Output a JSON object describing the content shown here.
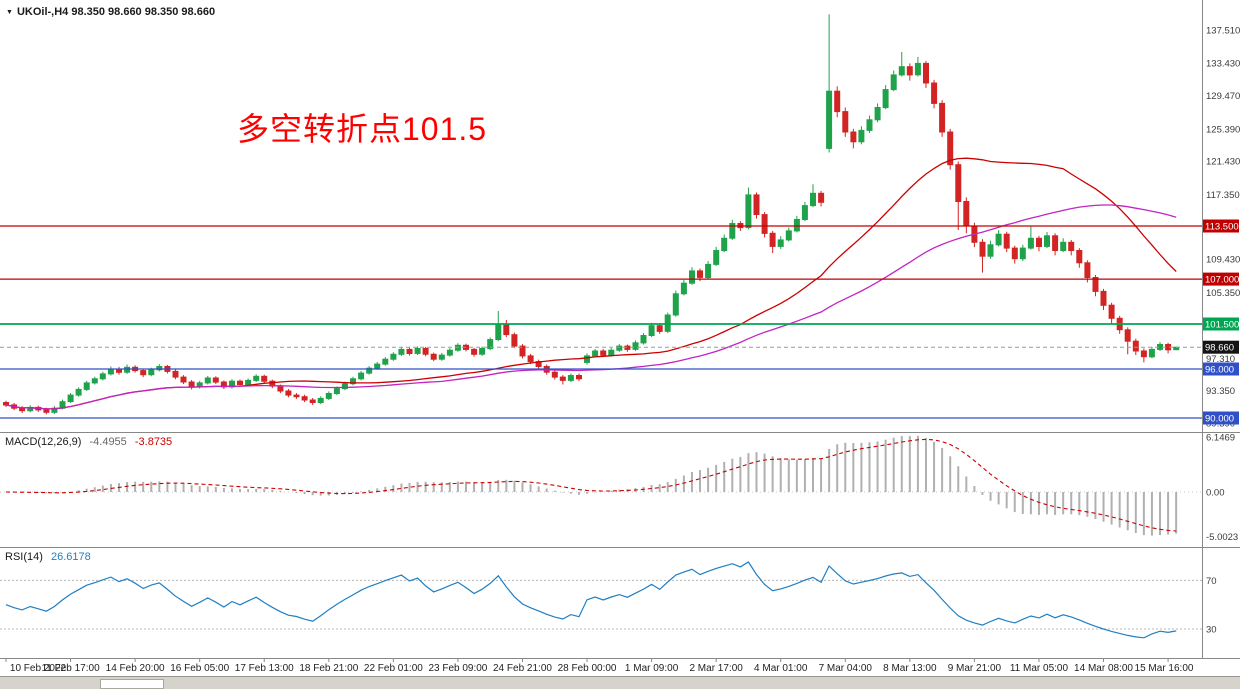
{
  "window": {
    "symbol_info": "UKOil-,H4  98.350 98.660 98.350 98.660",
    "dropdown_icon": "▼"
  },
  "annotation": {
    "text": "多空转折点101.5",
    "color": "#ff0000"
  },
  "price_axis": {
    "labels": [
      "137.510",
      "133.430",
      "129.470",
      "125.390",
      "121.430",
      "117.350",
      "109.430",
      "105.350",
      "97.310",
      "93.350",
      "89.390"
    ],
    "level_badges": [
      {
        "label": "113.500",
        "price": 113.5,
        "bg": "#c00000",
        "line": "solid"
      },
      {
        "label": "107.000",
        "price": 107.0,
        "bg": "#c00000",
        "line": "solid"
      },
      {
        "label": "101.500",
        "price": 101.5,
        "bg": "#00a651",
        "line": "solid",
        "thick": true
      },
      {
        "label": "98.660",
        "price": 98.66,
        "bg": "#141414",
        "line": "dashed"
      },
      {
        "label": "96.000",
        "price": 96.0,
        "bg": "#3050c8",
        "line": "solid"
      },
      {
        "label": "90.000",
        "price": 90.0,
        "bg": "#3050c8",
        "line": "solid"
      }
    ]
  },
  "macd": {
    "label": "MACD(12,26,9)",
    "value_main": "-4.4955",
    "value_signal": "-3.8735",
    "axis_labels": [
      "6.1469",
      "0.00",
      "-5.0023"
    ]
  },
  "rsi": {
    "label": "RSI(14)",
    "value": "26.6178",
    "levels": [
      "70",
      "30"
    ]
  },
  "time_axis": {
    "labels": [
      "10 Feb 2022",
      "11 Feb 17:00",
      "14 Feb 20:00",
      "16 Feb 05:00",
      "17 Feb 13:00",
      "18 Feb 21:00",
      "22 Feb 01:00",
      "23 Feb 09:00",
      "24 Feb 21:00",
      "28 Feb 00:00",
      "1 Mar 09:00",
      "2 Mar 17:00",
      "4 Mar 01:00",
      "7 Mar 04:00",
      "8 Mar 13:00",
      "9 Mar 21:00",
      "11 Mar 05:00",
      "14 Mar 08:00",
      "15 Mar 16:00"
    ]
  },
  "chart_data": {
    "type": "candlestick",
    "symbol": "UKOil-",
    "timeframe": "H4",
    "title": "多空转折点101.5",
    "current_bar": {
      "open": 98.35,
      "high": 98.66,
      "low": 98.35,
      "close": 98.66
    },
    "price_axis_range": [
      88.53,
      140.06
    ],
    "horizontal_levels": [
      113.5,
      107.0,
      101.5,
      96.0,
      90.0
    ],
    "current_price": 98.66,
    "ma_fast": {
      "period": 30,
      "color": "#cc0000"
    },
    "ma_slow": {
      "period": 55,
      "color": "#c224c2"
    },
    "macd": {
      "fast": 12,
      "slow": 26,
      "signal": 9,
      "range": [
        -5.94,
        6.5
      ],
      "last_main": -4.4955,
      "last_signal": -3.8735
    },
    "rsi": {
      "period": 14,
      "range": [
        7,
        95
      ],
      "levels": [
        70,
        30
      ],
      "last_value": 26.6178
    },
    "colors": {
      "up": "#1fa24a",
      "down": "#d32424",
      "hist": "#b0b0b0",
      "signal": "#cc0000",
      "rsi_line": "#1e7fc2",
      "axis_text": "#3a3a3a",
      "time_text": "#1f1f1f",
      "current_line": "#9a9a9a"
    },
    "ohlc": [
      [
        91.9,
        92.1,
        91.35,
        91.6
      ],
      [
        91.6,
        91.85,
        90.95,
        91.2
      ],
      [
        91.2,
        91.45,
        90.6,
        90.9
      ],
      [
        90.9,
        91.55,
        90.7,
        91.3
      ],
      [
        91.3,
        91.5,
        90.75,
        91.0
      ],
      [
        91.0,
        91.25,
        90.45,
        90.7
      ],
      [
        90.7,
        91.45,
        90.5,
        91.2
      ],
      [
        91.2,
        92.25,
        91.05,
        92.0
      ],
      [
        92.0,
        93.05,
        91.85,
        92.8
      ],
      [
        92.8,
        93.75,
        92.6,
        93.5
      ],
      [
        93.5,
        94.55,
        93.3,
        94.3
      ],
      [
        94.3,
        95.05,
        94.1,
        94.8
      ],
      [
        94.8,
        95.65,
        94.6,
        95.4
      ],
      [
        95.4,
        96.3,
        95.2,
        96.0
      ],
      [
        96.0,
        96.25,
        95.3,
        95.6
      ],
      [
        95.6,
        96.55,
        95.4,
        96.2
      ],
      [
        96.2,
        96.45,
        95.55,
        95.8
      ],
      [
        95.8,
        96.05,
        95.0,
        95.3
      ],
      [
        95.3,
        96.15,
        95.1,
        95.9
      ],
      [
        95.9,
        96.6,
        95.7,
        96.3
      ],
      [
        96.3,
        96.5,
        95.45,
        95.7
      ],
      [
        95.7,
        95.95,
        94.75,
        95.0
      ],
      [
        95.0,
        95.25,
        94.15,
        94.4
      ],
      [
        94.4,
        94.65,
        93.5,
        93.8
      ],
      [
        93.8,
        94.55,
        93.6,
        94.3
      ],
      [
        94.3,
        95.15,
        94.1,
        94.9
      ],
      [
        94.9,
        95.1,
        94.15,
        94.4
      ],
      [
        94.4,
        94.6,
        93.55,
        93.8
      ],
      [
        93.8,
        94.75,
        93.6,
        94.5
      ],
      [
        94.5,
        94.7,
        93.85,
        94.1
      ],
      [
        94.1,
        94.85,
        93.9,
        94.6
      ],
      [
        94.6,
        95.35,
        94.4,
        95.1
      ],
      [
        95.1,
        95.3,
        94.25,
        94.5
      ],
      [
        94.5,
        94.7,
        93.65,
        93.9
      ],
      [
        93.9,
        94.1,
        93.05,
        93.3
      ],
      [
        93.3,
        93.55,
        92.55,
        92.8
      ],
      [
        92.8,
        93.05,
        92.35,
        92.6
      ],
      [
        92.6,
        92.85,
        91.95,
        92.2
      ],
      [
        92.2,
        92.45,
        91.6,
        91.9
      ],
      [
        91.9,
        92.65,
        91.7,
        92.4
      ],
      [
        92.4,
        93.25,
        92.2,
        93.0
      ],
      [
        93.0,
        93.85,
        92.8,
        93.6
      ],
      [
        93.6,
        94.45,
        93.4,
        94.2
      ],
      [
        94.2,
        95.05,
        94.0,
        94.8
      ],
      [
        94.8,
        95.75,
        94.6,
        95.5
      ],
      [
        95.5,
        96.35,
        95.3,
        96.1
      ],
      [
        96.1,
        96.85,
        95.9,
        96.6
      ],
      [
        96.6,
        97.45,
        96.4,
        97.2
      ],
      [
        97.2,
        98.05,
        97.0,
        97.8
      ],
      [
        97.8,
        98.65,
        97.6,
        98.4
      ],
      [
        98.4,
        98.6,
        97.65,
        97.9
      ],
      [
        97.9,
        98.75,
        97.7,
        98.5
      ],
      [
        98.5,
        98.7,
        97.55,
        97.8
      ],
      [
        97.8,
        98.0,
        96.95,
        97.2
      ],
      [
        97.2,
        97.95,
        97.0,
        97.7
      ],
      [
        97.7,
        98.55,
        97.5,
        98.3
      ],
      [
        98.3,
        99.15,
        98.1,
        98.9
      ],
      [
        98.9,
        99.1,
        98.15,
        98.4
      ],
      [
        98.4,
        98.6,
        97.5,
        97.8
      ],
      [
        97.8,
        98.75,
        97.6,
        98.5
      ],
      [
        98.5,
        99.85,
        98.3,
        99.6
      ],
      [
        99.6,
        103.1,
        99.4,
        101.5
      ],
      [
        101.5,
        102.0,
        99.9,
        100.2
      ],
      [
        100.2,
        100.45,
        98.55,
        98.8
      ],
      [
        98.8,
        99.05,
        97.3,
        97.6
      ],
      [
        97.6,
        97.85,
        96.6,
        96.9
      ],
      [
        96.9,
        97.15,
        96.0,
        96.3
      ],
      [
        96.3,
        96.55,
        95.3,
        95.6
      ],
      [
        95.6,
        95.85,
        94.7,
        95.0
      ],
      [
        95.0,
        95.25,
        94.1,
        94.6
      ],
      [
        94.6,
        95.45,
        94.4,
        95.2
      ],
      [
        95.2,
        95.45,
        94.5,
        94.8
      ],
      [
        96.8,
        97.9,
        96.55,
        97.6
      ],
      [
        97.6,
        98.45,
        97.4,
        98.2
      ],
      [
        98.2,
        98.45,
        97.45,
        97.7
      ],
      [
        97.7,
        98.55,
        97.5,
        98.3
      ],
      [
        98.3,
        99.05,
        98.1,
        98.8
      ],
      [
        98.8,
        99.0,
        98.1,
        98.4
      ],
      [
        98.4,
        99.5,
        98.2,
        99.2
      ],
      [
        99.2,
        100.4,
        99.0,
        100.1
      ],
      [
        100.1,
        101.65,
        99.9,
        101.3
      ],
      [
        101.3,
        101.6,
        100.3,
        100.6
      ],
      [
        100.6,
        102.9,
        100.4,
        102.6
      ],
      [
        102.6,
        105.6,
        102.4,
        105.2
      ],
      [
        105.2,
        106.9,
        105.0,
        106.5
      ],
      [
        106.5,
        108.45,
        106.3,
        108.0
      ],
      [
        108.0,
        108.3,
        106.75,
        107.2
      ],
      [
        107.2,
        109.2,
        107.0,
        108.8
      ],
      [
        108.8,
        110.95,
        108.6,
        110.5
      ],
      [
        110.5,
        112.45,
        110.3,
        112.0
      ],
      [
        112.0,
        114.25,
        111.8,
        113.8
      ],
      [
        113.8,
        114.1,
        112.9,
        113.3
      ],
      [
        113.3,
        118.2,
        113.1,
        117.3
      ],
      [
        117.3,
        117.6,
        114.4,
        114.9
      ],
      [
        114.9,
        115.2,
        112.1,
        112.6
      ],
      [
        112.6,
        112.9,
        110.2,
        111.0
      ],
      [
        111.0,
        112.25,
        110.7,
        111.8
      ],
      [
        111.8,
        113.3,
        111.6,
        112.9
      ],
      [
        112.9,
        114.75,
        112.7,
        114.3
      ],
      [
        114.3,
        116.45,
        114.1,
        116.0
      ],
      [
        116.0,
        118.6,
        115.8,
        117.5
      ],
      [
        117.5,
        117.8,
        115.9,
        116.4
      ],
      [
        123.0,
        139.4,
        122.5,
        130.0
      ],
      [
        130.0,
        130.6,
        126.8,
        127.5
      ],
      [
        127.5,
        128.0,
        124.4,
        125.0
      ],
      [
        125.0,
        125.4,
        123.0,
        123.8
      ],
      [
        123.8,
        125.7,
        123.5,
        125.2
      ],
      [
        125.2,
        127.0,
        124.9,
        126.5
      ],
      [
        126.5,
        128.5,
        126.2,
        128.0
      ],
      [
        128.0,
        130.75,
        127.8,
        130.2
      ],
      [
        130.2,
        132.55,
        130.0,
        132.0
      ],
      [
        132.0,
        134.8,
        131.8,
        133.0
      ],
      [
        133.0,
        133.4,
        131.3,
        132.0
      ],
      [
        132.0,
        134.2,
        131.8,
        133.4
      ],
      [
        133.4,
        133.7,
        130.4,
        131.0
      ],
      [
        131.0,
        131.4,
        127.9,
        128.5
      ],
      [
        128.5,
        128.9,
        124.4,
        125.0
      ],
      [
        125.0,
        125.4,
        120.4,
        121.0
      ],
      [
        121.0,
        121.4,
        113.0,
        116.5
      ],
      [
        116.5,
        117.0,
        112.6,
        113.5
      ],
      [
        113.5,
        113.9,
        110.9,
        111.5
      ],
      [
        111.5,
        111.9,
        107.8,
        109.8
      ],
      [
        109.8,
        111.7,
        109.5,
        111.2
      ],
      [
        111.2,
        113.0,
        111.0,
        112.5
      ],
      [
        112.5,
        112.8,
        110.3,
        110.8
      ],
      [
        110.8,
        111.1,
        108.9,
        109.5
      ],
      [
        109.5,
        111.2,
        109.2,
        110.8
      ],
      [
        110.8,
        113.5,
        110.6,
        112.0
      ],
      [
        112.0,
        112.3,
        110.4,
        111.0
      ],
      [
        111.0,
        112.75,
        110.8,
        112.3
      ],
      [
        112.3,
        112.6,
        109.9,
        110.5
      ],
      [
        110.5,
        112.0,
        110.3,
        111.5
      ],
      [
        111.5,
        111.8,
        109.9,
        110.5
      ],
      [
        110.5,
        110.8,
        108.4,
        109.0
      ],
      [
        109.0,
        109.3,
        106.6,
        107.2
      ],
      [
        107.2,
        107.5,
        104.9,
        105.5
      ],
      [
        105.5,
        105.8,
        103.2,
        103.8
      ],
      [
        103.8,
        104.1,
        101.6,
        102.2
      ],
      [
        102.2,
        102.5,
        100.3,
        100.8
      ],
      [
        100.8,
        101.1,
        97.8,
        99.4
      ],
      [
        99.4,
        99.7,
        97.7,
        98.2
      ],
      [
        98.2,
        98.5,
        96.8,
        97.5
      ],
      [
        97.5,
        98.7,
        97.3,
        98.4
      ],
      [
        98.4,
        99.3,
        98.2,
        99.0
      ],
      [
        99.0,
        99.2,
        97.9,
        98.35
      ],
      [
        98.35,
        98.66,
        98.35,
        98.66
      ]
    ]
  }
}
